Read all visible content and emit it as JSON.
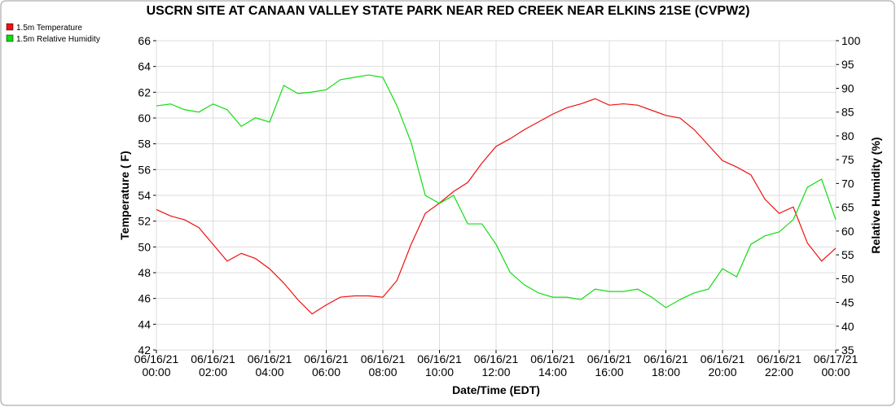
{
  "chart_data": {
    "type": "line",
    "title": "USCRN SITE AT CANAAN VALLEY STATE PARK NEAR RED CREEK NEAR ELKINS 21SE (CVPW2)",
    "x_label": "Date/Time (EDT)",
    "y_label": "Temperature ( F)",
    "y2_label": "Relative Humidity (%)",
    "x": [
      0,
      0.5,
      1,
      1.5,
      2,
      2.5,
      3,
      3.5,
      4,
      4.5,
      5,
      5.5,
      6,
      6.5,
      7,
      7.5,
      8,
      8.5,
      9,
      9.5,
      10,
      10.5,
      11,
      11.5,
      12,
      12.5,
      13,
      13.5,
      14,
      14.5,
      15,
      15.5,
      16,
      16.5,
      17,
      17.5,
      18,
      18.5,
      19,
      19.5,
      20,
      20.5,
      21,
      21.5,
      22,
      22.5,
      23,
      23.5,
      24
    ],
    "series": [
      {
        "name": "1.5m Temperature",
        "color": "#ee1111",
        "axis": "y",
        "values": [
          52.9,
          52.4,
          52.1,
          51.5,
          50.2,
          48.9,
          49.5,
          49.1,
          48.3,
          47.2,
          45.9,
          44.8,
          45.5,
          46.1,
          46.2,
          46.2,
          46.1,
          47.4,
          50.2,
          52.6,
          53.4,
          54.3,
          55.0,
          56.5,
          57.8,
          58.4,
          59.1,
          59.7,
          60.3,
          60.8,
          61.1,
          61.5,
          61.0,
          61.1,
          61.0,
          60.6,
          60.2,
          60.0,
          59.1,
          57.9,
          56.7,
          56.2,
          55.6,
          53.7,
          52.6,
          53.1,
          50.3,
          48.9,
          49.9
        ]
      },
      {
        "name": "1.5m Relative Humidity",
        "color": "#11dd11",
        "axis": "y2",
        "values": [
          86.3,
          86.7,
          85.5,
          85,
          86.7,
          85.5,
          82,
          83.8,
          82.9,
          90.6,
          88.9,
          89.2,
          89.7,
          91.8,
          92.3,
          92.8,
          92.3,
          86.3,
          78.6,
          67.5,
          65.8,
          67.5,
          61.5,
          61.5,
          57.2,
          51.3,
          48.7,
          47,
          46.1,
          46.1,
          45.6,
          47.8,
          47.3,
          47.3,
          47.8,
          46.1,
          43.9,
          45.6,
          47,
          47.8,
          52.1,
          50.4,
          57.2,
          59,
          59.8,
          62.4,
          69.2,
          70.9,
          62.4
        ]
      }
    ],
    "xlim": [
      0,
      24
    ],
    "xticks": [
      {
        "value": 0,
        "label": "06/16/21 00:00"
      },
      {
        "value": 2,
        "label": "06/16/21 02:00"
      },
      {
        "value": 4,
        "label": "06/16/21 04:00"
      },
      {
        "value": 6,
        "label": "06/16/21 06:00"
      },
      {
        "value": 8,
        "label": "06/16/21 08:00"
      },
      {
        "value": 10,
        "label": "06/16/21 10:00"
      },
      {
        "value": 12,
        "label": "06/16/21 12:00"
      },
      {
        "value": 14,
        "label": "06/16/21 14:00"
      },
      {
        "value": 16,
        "label": "06/16/21 16:00"
      },
      {
        "value": 18,
        "label": "06/16/21 18:00"
      },
      {
        "value": 20,
        "label": "06/16/21 20:00"
      },
      {
        "value": 22,
        "label": "06/16/21 22:00"
      },
      {
        "value": 24,
        "label": "06/17/21 00:00"
      }
    ],
    "ylim": [
      42,
      66
    ],
    "yticks": [
      42,
      44,
      46,
      48,
      50,
      52,
      54,
      56,
      58,
      60,
      62,
      64,
      66
    ],
    "y2lim": [
      35,
      100
    ],
    "y2ticks": [
      35,
      40,
      45,
      50,
      55,
      60,
      65,
      70,
      75,
      80,
      85,
      90,
      95,
      100
    ],
    "grid": true,
    "legend": "top-left"
  }
}
